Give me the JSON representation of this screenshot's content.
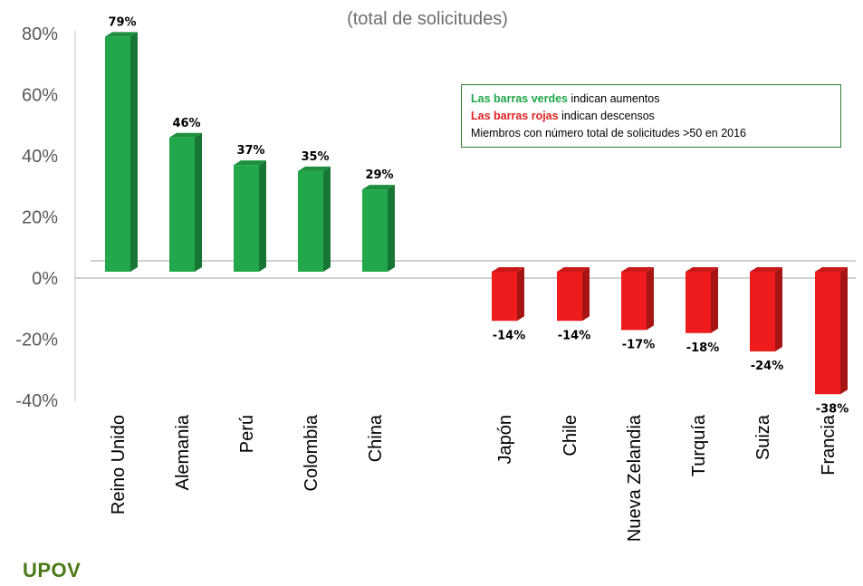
{
  "chart_data": {
    "type": "bar",
    "subtitle": "(total de solicitudes)",
    "categories": [
      "Reino Unido",
      "Alemania",
      "Perú",
      "Colombia",
      "China",
      "Japón",
      "Chile",
      "Nueva Zelandia",
      "Turquía",
      "Suiza",
      "Francia"
    ],
    "values": [
      79,
      46,
      37,
      35,
      29,
      -14,
      -14,
      -17,
      -18,
      -24,
      -38
    ],
    "data_labels": [
      "79%",
      "46%",
      "37%",
      "35%",
      "29%",
      "-14%",
      "-14%",
      "-17%",
      "-18%",
      "-24%",
      "-38%"
    ],
    "y_ticks": [
      "80%",
      "60%",
      "40%",
      "20%",
      "0%",
      "-20%",
      "-40%"
    ],
    "y_tick_values": [
      80,
      60,
      40,
      20,
      0,
      -20,
      -40
    ],
    "ylim": [
      -40,
      80
    ],
    "grid": false,
    "colors": {
      "increase": "#22a84a",
      "decrease": "#ee1c1c"
    },
    "legend": {
      "placement": "top-right",
      "entries": [
        {
          "highlight": "Las barras verdes",
          "text": " indican aumentos",
          "color": "#1fa64a"
        },
        {
          "highlight": "Las barras rojas",
          "text": " indican descensos",
          "color": "#e02020"
        },
        {
          "highlight": "",
          "text": "Miembros con número total de solicitudes >50 en 2016",
          "color": "#000000"
        }
      ]
    }
  },
  "branding": {
    "logo_text": "UPOV"
  }
}
